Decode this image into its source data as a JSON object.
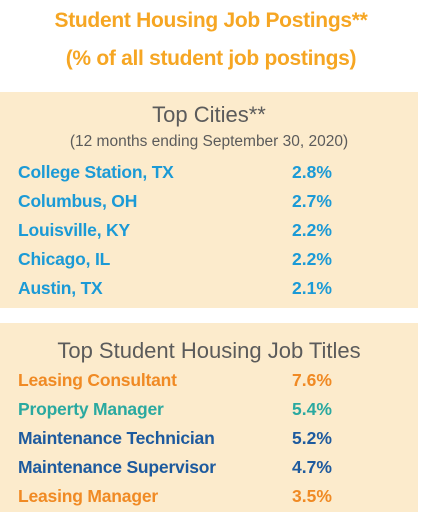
{
  "title": {
    "line1": "Student Housing Job Postings**",
    "line2": "(% of all student job postings)"
  },
  "top_cities": {
    "heading": "Top Cities**",
    "subheading": "(12 months ending September 30, 2020)",
    "color": "#1b9ad6",
    "rows": [
      {
        "label": "College Station, TX",
        "value": "2.8%"
      },
      {
        "label": "Columbus, OH",
        "value": "2.7%"
      },
      {
        "label": "Louisville, KY",
        "value": "2.2%"
      },
      {
        "label": "Chicago, IL",
        "value": "2.2%"
      },
      {
        "label": "Austin, TX",
        "value": "2.1%"
      }
    ]
  },
  "top_titles": {
    "heading": "Top Student Housing Job Titles",
    "rows": [
      {
        "label": "Leasing Consultant",
        "value": "7.6%",
        "color": "#f08a24"
      },
      {
        "label": "Property Manager",
        "value": "5.4%",
        "color": "#2aa9a0"
      },
      {
        "label": "Maintenance Technician",
        "value": "5.2%",
        "color": "#1d5a9e"
      },
      {
        "label": "Maintenance Supervisor",
        "value": "4.7%",
        "color": "#1d5a9e"
      },
      {
        "label": "Leasing Manager",
        "value": "3.5%",
        "color": "#f08a24"
      }
    ]
  },
  "colors": {
    "title": "#f6a623",
    "panel_background": "#fcebcc",
    "heading_text": "#5b5b5b"
  }
}
